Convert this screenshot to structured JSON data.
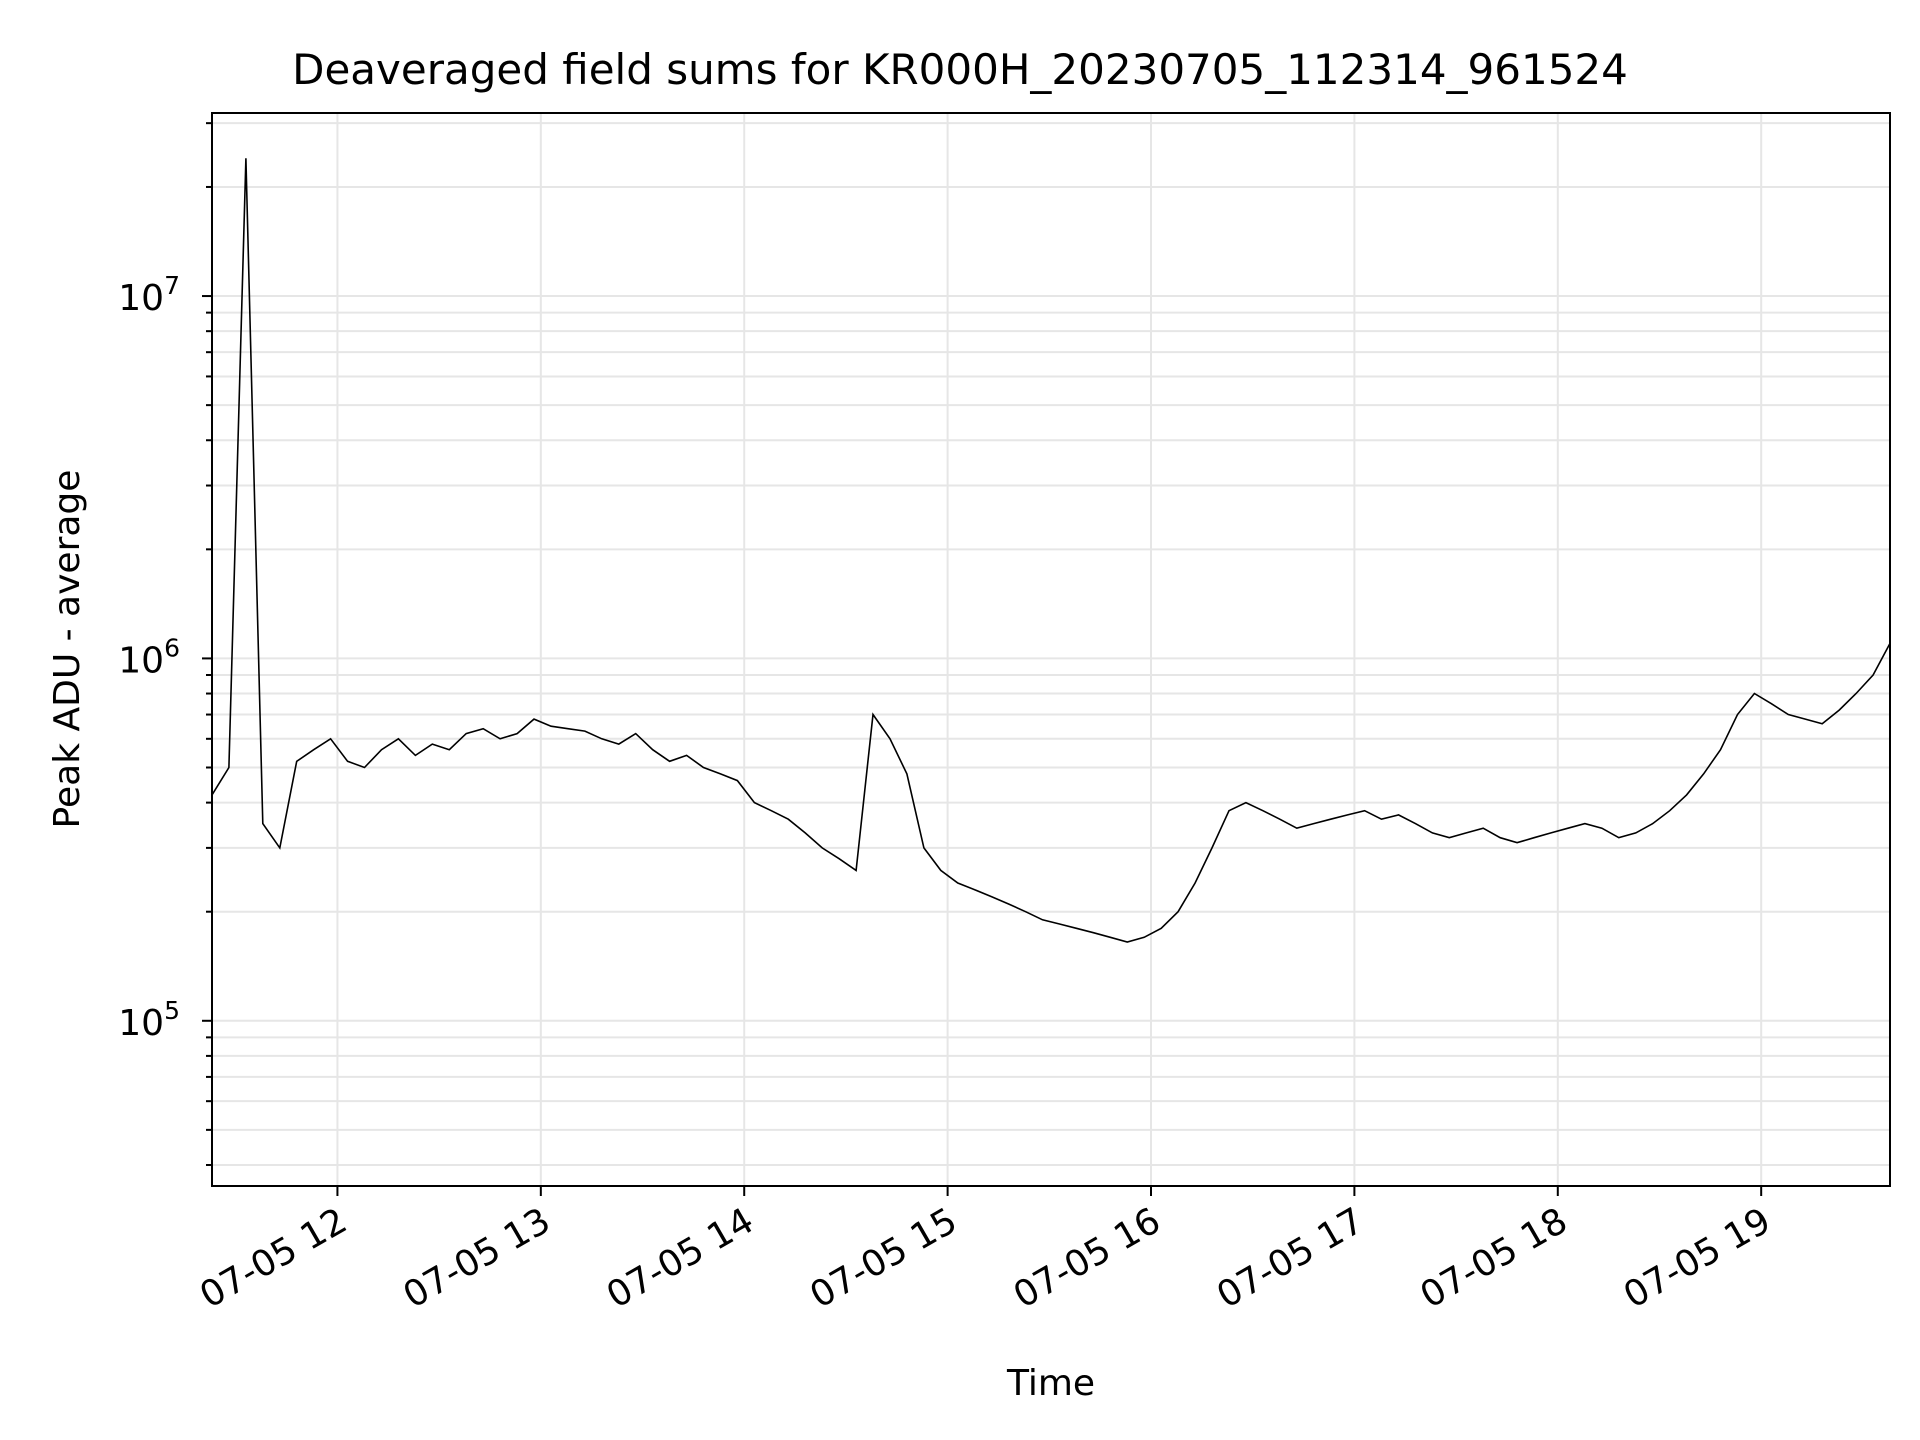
{
  "chart_data": {
    "type": "line",
    "title": "Deaveraged field sums for KR000H_20230705_112314_961524",
    "xlabel": "Time",
    "ylabel": "Peak ADU - average",
    "x_ticks": [
      "07-05 12",
      "07-05 13",
      "07-05 14",
      "07-05 15",
      "07-05 16",
      "07-05 17",
      "07-05 18",
      "07-05 19"
    ],
    "y_ticks": [
      {
        "base": "10",
        "exp": "5",
        "value": 100000
      },
      {
        "base": "10",
        "exp": "6",
        "value": 1000000
      },
      {
        "base": "10",
        "exp": "7",
        "value": 10000000
      }
    ],
    "xlim": [
      "2023-07-05 11:23",
      "2023-07-05 19:38"
    ],
    "ylim": [
      35000,
      32000000
    ],
    "yscale": "log",
    "grid": true,
    "line_color": "#000000",
    "series": [
      {
        "time_step_minutes": 5,
        "start_time": "2023-07-05 11:23",
        "values": [
          420000,
          500000,
          24000000.0,
          350000,
          300000,
          520000,
          560000,
          600000,
          520000,
          500000,
          560000,
          600000,
          540000,
          580000,
          560000,
          620000,
          640000,
          600000,
          620000,
          680000,
          650000,
          640000,
          630000,
          600000,
          580000,
          620000,
          560000,
          520000,
          540000,
          500000,
          480000,
          460000,
          400000,
          380000,
          360000,
          330000,
          300000,
          280000,
          260000,
          700000,
          600000,
          480000,
          300000,
          260000,
          240000,
          230000,
          220000,
          210000,
          200000,
          190000,
          185000,
          180000,
          175000,
          170000,
          165000,
          170000,
          180000,
          200000,
          240000,
          300000,
          380000,
          400000,
          380000,
          360000,
          340000,
          350000,
          360000,
          370000,
          380000,
          360000,
          370000,
          350000,
          330000,
          320000,
          330000,
          340000,
          320000,
          310000,
          320000,
          330000,
          340000,
          350000,
          340000,
          320000,
          330000,
          350000,
          380000,
          420000,
          480000,
          560000,
          700000,
          800000,
          750000,
          700000,
          680000,
          660000,
          720000,
          800000,
          900000,
          1100000
        ]
      }
    ]
  }
}
